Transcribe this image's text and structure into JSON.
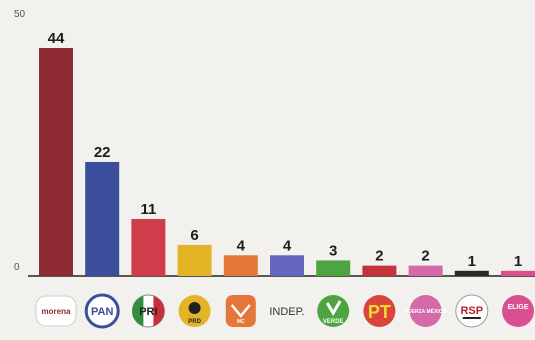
{
  "chart_data": {
    "type": "bar",
    "categories": [
      "morena",
      "PAN",
      "PRI",
      "PRD",
      "MC",
      "INDEP.",
      "VERDE",
      "PT",
      "FUERZA MÉXICO",
      "RSP",
      "ELIGE"
    ],
    "values": [
      44,
      22,
      11,
      6,
      4,
      4,
      3,
      2,
      2,
      1,
      1
    ],
    "colors": [
      "#8e2b33",
      "#3a4e9c",
      "#cf3d4b",
      "#e3b526",
      "#e4763a",
      "#6466c0",
      "#4ea440",
      "#c2343a",
      "#d56aa8",
      "#2a2a2a",
      "#d8508f"
    ],
    "yticks": [
      0,
      50
    ],
    "ylim": [
      0,
      50
    ],
    "grid": false,
    "legend": "none",
    "title": "",
    "xlabel": "",
    "ylabel": ""
  }
}
